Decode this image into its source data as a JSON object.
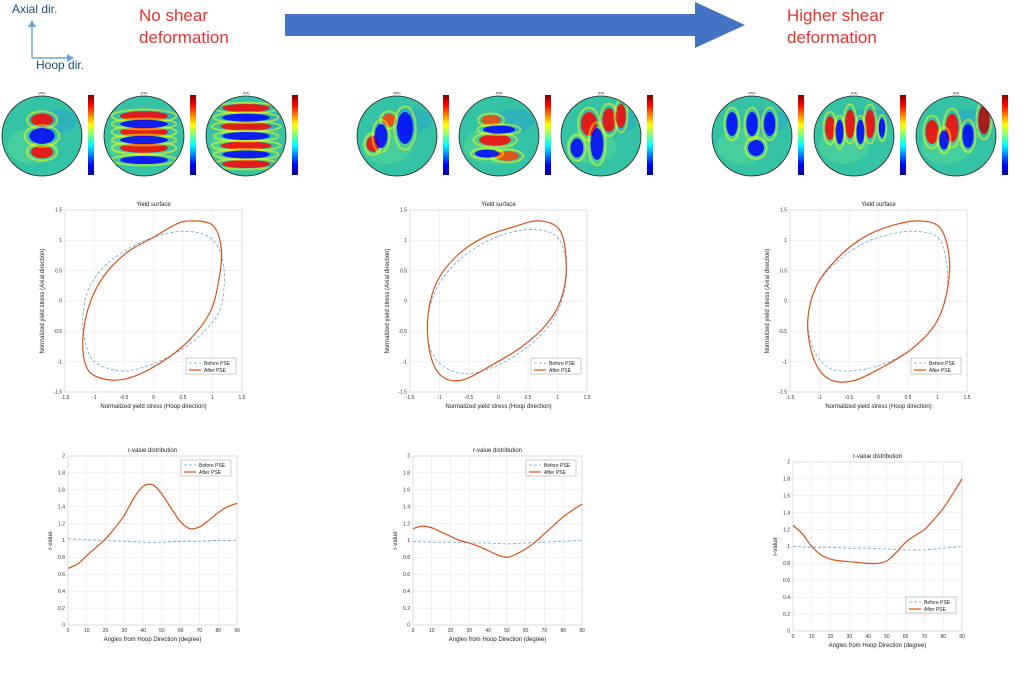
{
  "header": {
    "axial_label": "Axial dir.",
    "hoop_label": "Hoop dir.",
    "left_title_line1": "No shear",
    "left_title_line2": "deformation",
    "right_title_line1": "Higher shear",
    "right_title_line2": "deformation"
  },
  "colors": {
    "title_red": "#e8342a",
    "arrow_blue": "#4472c4",
    "before_series": "#6aa5d8",
    "after_series": "#d95319"
  },
  "pole_figures": {
    "labels": [
      "{001}",
      "{011}",
      "{111}"
    ],
    "colormap": "jet"
  },
  "chart_data": [
    {
      "type": "line",
      "title": "Yield surface",
      "xlabel": "Normalized yield stress (Hoop direction)",
      "ylabel": "Normalized yield stress (Axial direction)",
      "xlim": [
        -1.5,
        1.5
      ],
      "ylim": [
        -1.5,
        1.5
      ],
      "xticks": [
        "-1.5",
        "-1",
        "-0.5",
        "0",
        "0.5",
        "1",
        "1.5"
      ],
      "yticks": [
        "-1.5",
        "-1",
        "-0.5",
        "0",
        "0.5",
        "1",
        "1.5"
      ],
      "grid": true,
      "legend": "bottom-right",
      "series": [
        {
          "name": "Before PSE",
          "style": "dashed",
          "x": [
            0.55,
            0.95,
            1.15,
            1.2,
            1.1,
            0.75,
            0.3,
            -0.2,
            -0.6,
            -1.0,
            -1.15,
            -1.2,
            -1.1,
            -0.8,
            -0.35,
            0.1,
            0.55
          ],
          "y": [
            1.15,
            1.05,
            0.75,
            0.3,
            -0.2,
            -0.6,
            -0.9,
            -1.1,
            -1.15,
            -1.0,
            -0.7,
            -0.3,
            0.2,
            0.6,
            0.9,
            1.08,
            1.15
          ]
        },
        {
          "name": "After PSE",
          "style": "solid",
          "x": [
            0.6,
            1.0,
            1.15,
            1.1,
            0.95,
            0.6,
            0.15,
            -0.35,
            -0.75,
            -1.1,
            -1.2,
            -1.1,
            -0.85,
            -0.45,
            0.0,
            0.35,
            0.6
          ],
          "y": [
            1.32,
            1.25,
            0.85,
            0.3,
            -0.2,
            -0.65,
            -1.0,
            -1.25,
            -1.3,
            -1.15,
            -0.7,
            -0.1,
            0.4,
            0.8,
            1.05,
            1.25,
            1.32
          ]
        }
      ]
    },
    {
      "type": "line",
      "title": "Yield surface",
      "xlabel": "Normalized yield stress (Hoop direction)",
      "ylabel": "Normalized yield stress (Axial direction)",
      "xlim": [
        -1.5,
        1.5
      ],
      "ylim": [
        -1.5,
        1.5
      ],
      "xticks": [
        "-1.5",
        "-1",
        "-0.5",
        "0",
        "0.5",
        "1",
        "1.5"
      ],
      "yticks": [
        "-1.5",
        "-1",
        "-0.5",
        "0",
        "0.5",
        "1",
        "1.5"
      ],
      "grid": true,
      "legend": "bottom-right",
      "series": [
        {
          "name": "Before PSE",
          "style": "dashed",
          "x": [
            0.6,
            1.0,
            1.15,
            1.1,
            0.9,
            0.5,
            0.0,
            -0.5,
            -0.9,
            -1.15,
            -1.2,
            -1.05,
            -0.75,
            -0.35,
            0.1,
            0.6
          ],
          "y": [
            1.18,
            1.05,
            0.6,
            0.1,
            -0.35,
            -0.75,
            -1.05,
            -1.2,
            -1.1,
            -0.8,
            -0.3,
            0.2,
            0.6,
            0.9,
            1.1,
            1.18
          ]
        },
        {
          "name": "After PSE",
          "style": "solid",
          "x": [
            0.7,
            1.05,
            1.15,
            1.05,
            0.8,
            0.4,
            -0.1,
            -0.6,
            -0.95,
            -1.15,
            -1.2,
            -1.05,
            -0.7,
            -0.25,
            0.25,
            0.7
          ],
          "y": [
            1.32,
            1.15,
            0.55,
            0.0,
            -0.4,
            -0.75,
            -1.05,
            -1.3,
            -1.25,
            -0.9,
            -0.3,
            0.3,
            0.75,
            1.05,
            1.22,
            1.32
          ]
        }
      ]
    },
    {
      "type": "line",
      "title": "Yield surface",
      "xlabel": "Normalized yield stress (Hoop direction)",
      "ylabel": "Normalized yield stress (Axial direction)",
      "xlim": [
        -1.5,
        1.5
      ],
      "ylim": [
        -1.5,
        1.5
      ],
      "xticks": [
        "-1.5",
        "-1",
        "-0.5",
        "0",
        "0.5",
        "1",
        "1.5"
      ],
      "yticks": [
        "-1.5",
        "-1",
        "-0.5",
        "0",
        "0.5",
        "1",
        "1.5"
      ],
      "grid": true,
      "legend": "bottom-right",
      "series": [
        {
          "name": "Before PSE",
          "style": "dashed",
          "x": [
            0.6,
            1.0,
            1.15,
            1.15,
            0.95,
            0.55,
            0.05,
            -0.45,
            -0.85,
            -1.1,
            -1.2,
            -1.05,
            -0.7,
            -0.25,
            0.2,
            0.6
          ],
          "y": [
            1.15,
            1.05,
            0.65,
            0.1,
            -0.4,
            -0.8,
            -1.05,
            -1.15,
            -1.1,
            -0.8,
            -0.3,
            0.25,
            0.65,
            0.95,
            1.1,
            1.15
          ]
        },
        {
          "name": "After PSE",
          "style": "solid",
          "x": [
            0.7,
            1.05,
            1.2,
            1.15,
            0.95,
            0.55,
            0.05,
            -0.45,
            -0.85,
            -1.1,
            -1.2,
            -1.05,
            -0.7,
            -0.25,
            0.25,
            0.7
          ],
          "y": [
            1.32,
            1.2,
            0.7,
            0.1,
            -0.4,
            -0.8,
            -1.1,
            -1.32,
            -1.28,
            -0.95,
            -0.35,
            0.25,
            0.7,
            1.05,
            1.25,
            1.32
          ]
        }
      ]
    },
    {
      "type": "line",
      "title": "r-value distribution",
      "xlabel": "Angles  from  Hoop  Direction  (degree)",
      "ylabel": "r-value",
      "xlim": [
        0,
        90
      ],
      "ylim": [
        0,
        2
      ],
      "xticks": [
        "0",
        "10",
        "20",
        "30",
        "40",
        "50",
        "60",
        "70",
        "80",
        "90"
      ],
      "yticks": [
        "0",
        "0.2",
        "0.4",
        "0.6",
        "0.8",
        "1",
        "1.2",
        "1.4",
        "1.6",
        "1.8",
        "2"
      ],
      "grid": true,
      "legend": "top-right",
      "series": [
        {
          "name": "Before PSE",
          "style": "dashed",
          "x": [
            0,
            10,
            20,
            30,
            40,
            50,
            60,
            70,
            80,
            90
          ],
          "y": [
            1.02,
            1.01,
            1.0,
            0.99,
            0.98,
            0.98,
            0.99,
            0.99,
            1.0,
            1.0
          ]
        },
        {
          "name": "After PSE",
          "style": "solid",
          "x": [
            0,
            5,
            10,
            15,
            20,
            25,
            30,
            35,
            40,
            45,
            50,
            55,
            60,
            65,
            70,
            75,
            80,
            85,
            90
          ],
          "y": [
            0.67,
            0.72,
            0.82,
            0.92,
            1.02,
            1.15,
            1.3,
            1.5,
            1.64,
            1.66,
            1.55,
            1.38,
            1.22,
            1.14,
            1.16,
            1.24,
            1.33,
            1.4,
            1.44
          ]
        }
      ]
    },
    {
      "type": "line",
      "title": "r-value distribution",
      "xlabel": "Angles  from  Hoop  Direction  (degree)",
      "ylabel": "r-value",
      "xlim": [
        0,
        90
      ],
      "ylim": [
        0,
        2
      ],
      "xticks": [
        "0",
        "10",
        "20",
        "30",
        "40",
        "50",
        "60",
        "70",
        "80",
        "90"
      ],
      "yticks": [
        "0",
        "0.2",
        "0.4",
        "0.6",
        "0.8",
        "1",
        "1.2",
        "1.4",
        "1.6",
        "1.8",
        "2"
      ],
      "grid": true,
      "legend": "top-right",
      "series": [
        {
          "name": "Before PSE",
          "style": "dashed",
          "x": [
            0,
            10,
            20,
            30,
            40,
            50,
            60,
            70,
            80,
            90
          ],
          "y": [
            0.99,
            0.98,
            0.98,
            0.97,
            0.97,
            0.96,
            0.97,
            0.98,
            0.99,
            1.0
          ]
        },
        {
          "name": "After PSE",
          "style": "solid",
          "x": [
            0,
            5,
            10,
            15,
            20,
            25,
            30,
            35,
            40,
            45,
            50,
            55,
            60,
            65,
            70,
            75,
            80,
            85,
            90
          ],
          "y": [
            1.14,
            1.17,
            1.15,
            1.1,
            1.05,
            1.0,
            0.97,
            0.93,
            0.88,
            0.83,
            0.8,
            0.84,
            0.9,
            0.98,
            1.08,
            1.18,
            1.28,
            1.36,
            1.43
          ]
        }
      ]
    },
    {
      "type": "line",
      "title": "r-value distribution",
      "xlabel": "Angles  from  Hoop  Direction  (degree)",
      "ylabel": "r-value",
      "xlim": [
        0,
        90
      ],
      "ylim": [
        0,
        2
      ],
      "xticks": [
        "0",
        "10",
        "20",
        "30",
        "40",
        "50",
        "60",
        "70",
        "80",
        "90"
      ],
      "yticks": [
        "0",
        "0.2",
        "0.4",
        "0.6",
        "0.8",
        "1",
        "1.2",
        "1.4",
        "1.6",
        "1.8",
        "2"
      ],
      "grid": true,
      "legend": "bottom-right",
      "series": [
        {
          "name": "Before PSE",
          "style": "dashed",
          "x": [
            0,
            10,
            20,
            30,
            40,
            50,
            60,
            70,
            80,
            90
          ],
          "y": [
            1.0,
            0.99,
            0.99,
            0.98,
            0.98,
            0.97,
            0.96,
            0.96,
            0.98,
            1.0
          ]
        },
        {
          "name": "After PSE",
          "style": "solid",
          "x": [
            0,
            5,
            10,
            15,
            20,
            25,
            30,
            35,
            40,
            45,
            50,
            55,
            60,
            65,
            70,
            75,
            80,
            85,
            90
          ],
          "y": [
            1.25,
            1.15,
            1.0,
            0.9,
            0.85,
            0.83,
            0.82,
            0.81,
            0.8,
            0.8,
            0.83,
            0.93,
            1.05,
            1.13,
            1.2,
            1.32,
            1.45,
            1.62,
            1.8
          ]
        }
      ]
    }
  ]
}
